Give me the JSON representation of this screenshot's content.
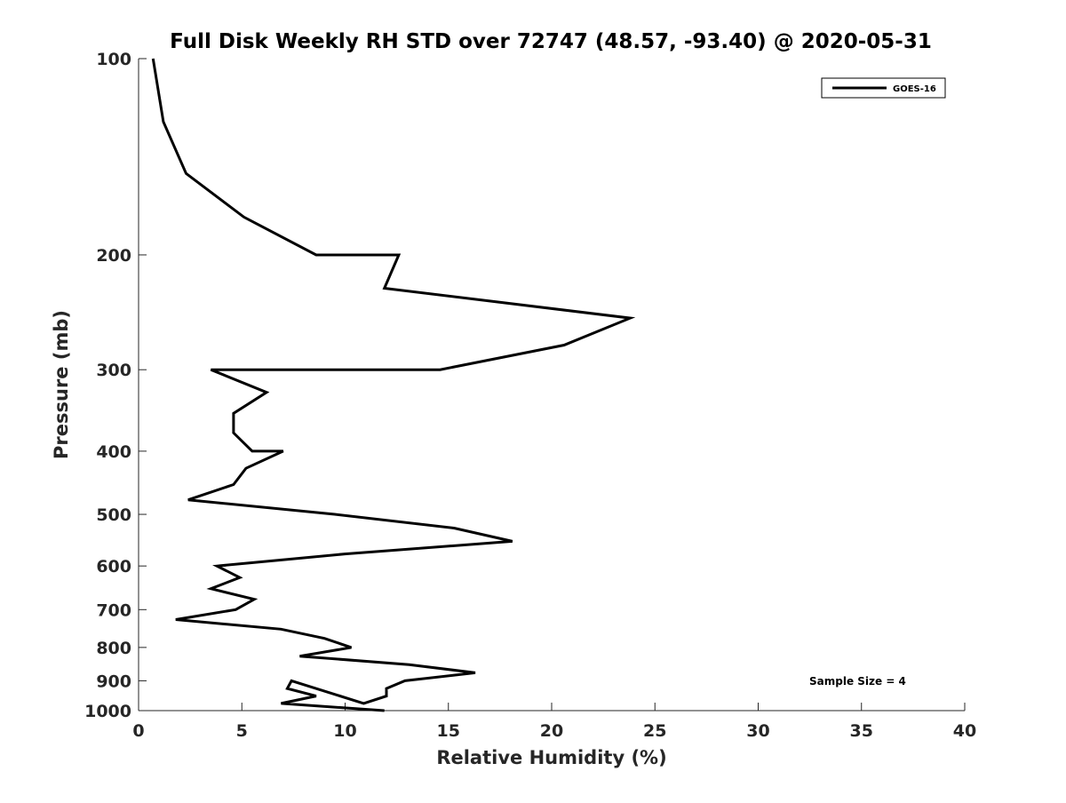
{
  "chart_data": {
    "type": "line",
    "title": "Full Disk Weekly RH STD over 72747 (48.57, -93.40) @ 2020-05-31",
    "xlabel": "Relative Humidity (%)",
    "ylabel": "Pressure (mb)",
    "xlim": [
      0,
      40
    ],
    "ylim": [
      100,
      1000
    ],
    "y_scale": "log",
    "y_reversed": true,
    "grid": false,
    "legend_position": "top-right",
    "xticks": [
      "0",
      "5",
      "10",
      "15",
      "20",
      "25",
      "30",
      "35",
      "40"
    ],
    "yticks": [
      "100",
      "200",
      "300",
      "400",
      "500",
      "600",
      "700",
      "800",
      "900",
      "1000"
    ],
    "series": [
      {
        "name": "GOES-16",
        "color": "#000000",
        "points": [
          [
            0.7,
            100
          ],
          [
            1.2,
            125
          ],
          [
            2.3,
            150
          ],
          [
            5.1,
            175
          ],
          [
            8.6,
            200
          ],
          [
            12.6,
            200
          ],
          [
            11.9,
            225
          ],
          [
            23.8,
            250
          ],
          [
            20.6,
            275
          ],
          [
            14.6,
            300
          ],
          [
            3.5,
            300
          ],
          [
            6.2,
            325
          ],
          [
            4.6,
            350
          ],
          [
            4.6,
            375
          ],
          [
            5.5,
            400
          ],
          [
            7.0,
            400
          ],
          [
            5.2,
            425
          ],
          [
            4.6,
            450
          ],
          [
            2.4,
            475
          ],
          [
            9.5,
            500
          ],
          [
            15.3,
            525
          ],
          [
            18.1,
            550
          ],
          [
            10.0,
            575
          ],
          [
            3.8,
            600
          ],
          [
            4.9,
            625
          ],
          [
            3.5,
            650
          ],
          [
            5.6,
            675
          ],
          [
            4.7,
            700
          ],
          [
            1.8,
            725
          ],
          [
            6.9,
            750
          ],
          [
            9.0,
            775
          ],
          [
            10.3,
            800
          ],
          [
            7.8,
            825
          ],
          [
            13.1,
            850
          ],
          [
            16.3,
            875
          ],
          [
            12.9,
            900
          ],
          [
            12.0,
            925
          ],
          [
            12.0,
            950
          ],
          [
            10.9,
            975
          ],
          [
            7.4,
            900
          ],
          [
            7.2,
            925
          ],
          [
            8.6,
            950
          ],
          [
            6.9,
            975
          ],
          [
            11.9,
            1000
          ]
        ]
      }
    ],
    "annotations": [
      "Sample Size = 4"
    ]
  }
}
